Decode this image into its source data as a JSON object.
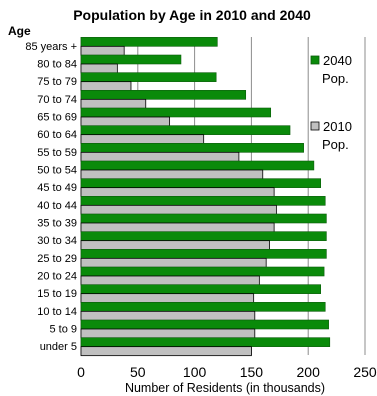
{
  "chart_data": {
    "type": "bar",
    "orientation": "horizontal",
    "title": "Population by Age in 2010 and 2040",
    "ylabel": "Age",
    "xlabel": "Number of Residents (in thousands)",
    "xlim": [
      0,
      250
    ],
    "xticks": [
      0,
      50,
      100,
      150,
      200,
      250
    ],
    "grid": "vertical",
    "legend_position": "right",
    "categories": [
      "85 years +",
      "80 to 84",
      "75 to 79",
      "70 to 74",
      "65 to 69",
      "60 to 64",
      "55 to 59",
      "50 to 54",
      "45 to 49",
      "40 to 44",
      "35 to 39",
      "30 to 34",
      "25 to 29",
      "20 to 24",
      "15 to 19",
      "10 to 14",
      "5 to 9",
      "under 5"
    ],
    "series": [
      {
        "name": "2040 Pop.",
        "color": "#0a8a0a",
        "values": [
          120,
          88,
          119,
          145,
          167,
          184,
          196,
          205,
          211,
          215,
          216,
          216,
          216,
          214,
          211,
          215,
          218,
          219
        ]
      },
      {
        "name": "2010 Pop.",
        "color": "#c0c0c0",
        "values": [
          38,
          32,
          44,
          57,
          78,
          108,
          139,
          160,
          170,
          172,
          170,
          166,
          163,
          157,
          152,
          153,
          153,
          150
        ]
      }
    ]
  }
}
